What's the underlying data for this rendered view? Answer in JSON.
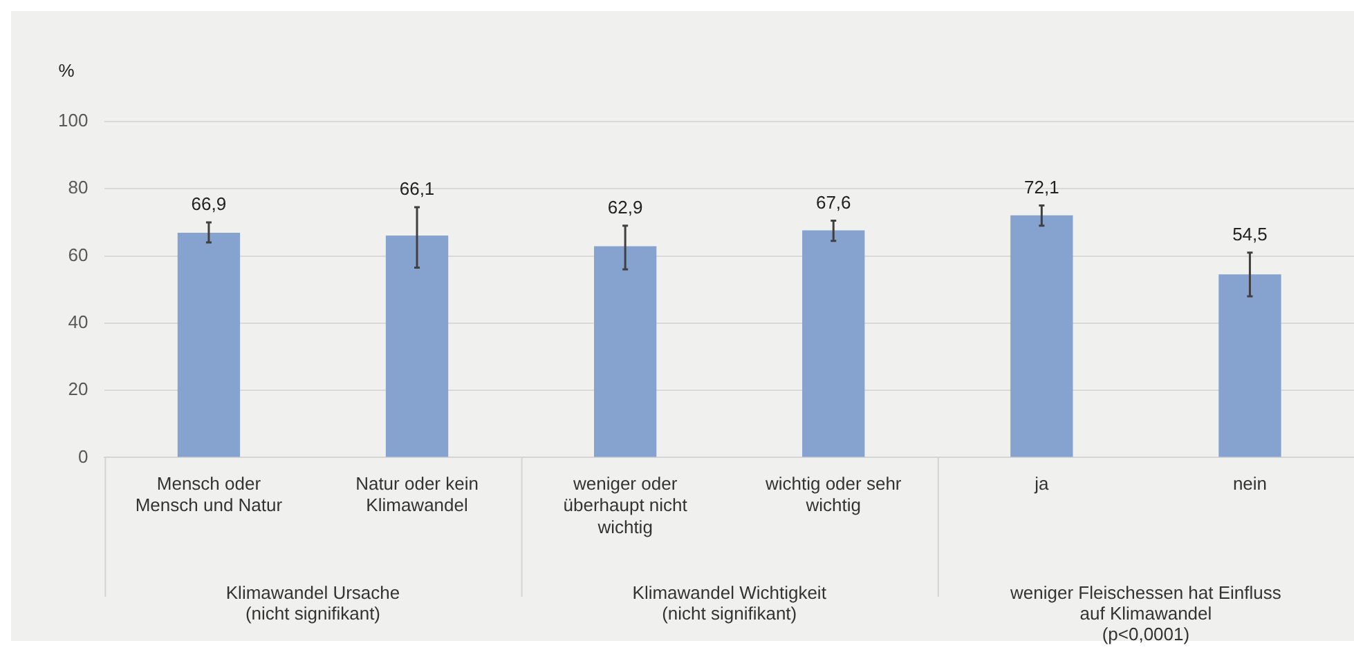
{
  "chart_data": {
    "type": "bar",
    "ylabel": "%",
    "categories": [
      "Mensch oder Mensch und Natur",
      "Natur oder kein Klimawandel",
      "weniger oder überhaupt nicht wichtig",
      "wichtig oder sehr wichtig",
      "ja",
      "nein"
    ],
    "values": [
      66.9,
      66.1,
      62.9,
      67.6,
      72.1,
      54.5
    ],
    "errors": [
      [
        64,
        70
      ],
      [
        56.5,
        74.5
      ],
      [
        56,
        69
      ],
      [
        64.5,
        70.5
      ],
      [
        69,
        75
      ],
      [
        48,
        61
      ]
    ],
    "color": "#86a2cf",
    "value_labels": [
      "66,9",
      "66,1",
      "62,9",
      "67,6",
      "72,1",
      "54,5"
    ],
    "ylim": [
      0,
      100
    ],
    "yticks": [
      0,
      20,
      40,
      60,
      80,
      100
    ],
    "grid": "y",
    "legend": false,
    "annotations": [
      "Klimawandel Ursache\n(nicht signifikant)",
      "Klimawandel Wichtigkeit\n(nicht signifikant)",
      "weniger Fleischessen hat Einfluss\nauf Klimawandel\n(p<0,0001)"
    ]
  }
}
